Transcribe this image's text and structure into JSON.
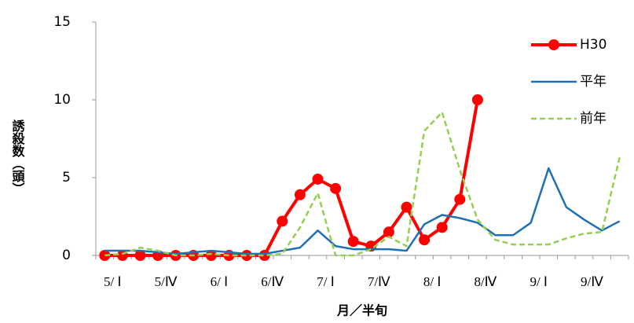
{
  "chart_data": {
    "type": "line",
    "y_label": "誘殺数（頭）",
    "x_label": "月／半旬",
    "categories": [
      "5/ Ⅰ",
      null,
      null,
      "5/Ⅳ",
      null,
      null,
      "6/ Ⅰ",
      null,
      null,
      "6/Ⅳ",
      null,
      null,
      "7/ Ⅰ",
      null,
      null,
      "7/Ⅳ",
      null,
      null,
      "8/ Ⅰ",
      null,
      null,
      "8/Ⅳ",
      null,
      null,
      "9/ Ⅰ",
      null,
      null,
      "9/Ⅳ",
      null,
      null
    ],
    "series": [
      {
        "name": "H30",
        "color": "#ff0000",
        "style": "solid-marker",
        "values": [
          0,
          0,
          0,
          0,
          0,
          0,
          0,
          0,
          0,
          0,
          2.2,
          3.9,
          4.9,
          4.3,
          0.9,
          0.6,
          1.5,
          3.1,
          1.0,
          1.8,
          3.6,
          10.0,
          null,
          null,
          null,
          null,
          null,
          null,
          null,
          null
        ]
      },
      {
        "name": "平年",
        "color": "#1f6fb4",
        "style": "solid",
        "values": [
          0.3,
          0.3,
          0.3,
          0.2,
          0.1,
          0.2,
          0.3,
          0.2,
          0.1,
          0.1,
          0.3,
          0.5,
          1.6,
          0.6,
          0.4,
          0.4,
          0.4,
          0.3,
          2.0,
          2.6,
          2.4,
          2.1,
          1.3,
          1.3,
          2.1,
          5.6,
          3.1,
          2.3,
          1.6,
          2.2
        ]
      },
      {
        "name": "前年",
        "color": "#92d050",
        "style": "dashed",
        "values": [
          0.0,
          0.1,
          0.5,
          0.3,
          0.0,
          0.0,
          0.1,
          0.0,
          0.0,
          0.0,
          0.1,
          1.8,
          4.0,
          0.0,
          0.0,
          0.4,
          1.2,
          0.6,
          8.0,
          9.2,
          5.5,
          2.3,
          1.0,
          0.7,
          0.7,
          0.7,
          1.1,
          1.4,
          1.5,
          6.3
        ]
      }
    ],
    "ylim": [
      0,
      15
    ],
    "yticks": [
      0,
      5,
      10,
      15
    ],
    "grid": false,
    "legend": "top-right"
  }
}
